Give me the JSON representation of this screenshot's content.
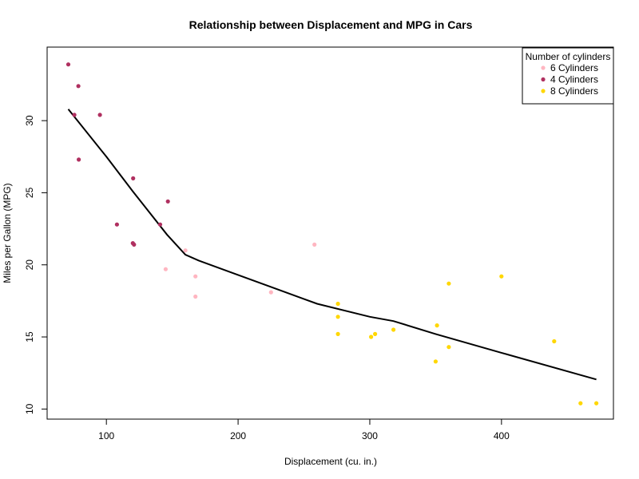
{
  "chart_data": {
    "type": "scatter",
    "title": "Relationship between Displacement and MPG in Cars",
    "xlabel": "Displacement (cu. in.)",
    "ylabel": "Miles per Gallon (MPG)",
    "xlim": [
      55,
      485
    ],
    "ylim": [
      9.3,
      35.1
    ],
    "x_ticks": [
      100,
      200,
      300,
      400
    ],
    "y_ticks": [
      10,
      15,
      20,
      25,
      30
    ],
    "grid": false,
    "legend": {
      "title": "Number of cylinders",
      "position": "top-right",
      "entries": [
        {
          "label": "6 Cylinders",
          "color": "#FFB6C1"
        },
        {
          "label": "4 Cylinders",
          "color": "#B03060"
        },
        {
          "label": "8 Cylinders",
          "color": "#FFD700"
        }
      ]
    },
    "series": [
      {
        "name": "4 Cylinders",
        "color": "#B03060",
        "points": [
          {
            "x": 71.1,
            "y": 33.9
          },
          {
            "x": 75.7,
            "y": 30.4
          },
          {
            "x": 78.7,
            "y": 32.4
          },
          {
            "x": 79.0,
            "y": 27.3
          },
          {
            "x": 95.1,
            "y": 30.4
          },
          {
            "x": 108.0,
            "y": 22.8
          },
          {
            "x": 120.3,
            "y": 26.0
          },
          {
            "x": 120.1,
            "y": 21.5
          },
          {
            "x": 121.0,
            "y": 21.4
          },
          {
            "x": 140.8,
            "y": 22.8
          },
          {
            "x": 146.7,
            "y": 24.4
          }
        ]
      },
      {
        "name": "6 Cylinders",
        "color": "#FFB6C1",
        "points": [
          {
            "x": 145.0,
            "y": 19.7
          },
          {
            "x": 160.0,
            "y": 21.0
          },
          {
            "x": 167.6,
            "y": 19.2
          },
          {
            "x": 167.6,
            "y": 17.8
          },
          {
            "x": 225.0,
            "y": 18.1
          },
          {
            "x": 258.0,
            "y": 21.4
          }
        ]
      },
      {
        "name": "8 Cylinders",
        "color": "#FFD700",
        "points": [
          {
            "x": 275.8,
            "y": 16.4
          },
          {
            "x": 275.8,
            "y": 17.3
          },
          {
            "x": 275.8,
            "y": 15.2
          },
          {
            "x": 301.0,
            "y": 15.0
          },
          {
            "x": 304.0,
            "y": 15.2
          },
          {
            "x": 318.0,
            "y": 15.5
          },
          {
            "x": 350.0,
            "y": 13.3
          },
          {
            "x": 351.0,
            "y": 15.8
          },
          {
            "x": 360.0,
            "y": 18.7
          },
          {
            "x": 360.0,
            "y": 14.3
          },
          {
            "x": 400.0,
            "y": 19.2
          },
          {
            "x": 440.0,
            "y": 14.7
          },
          {
            "x": 460.0,
            "y": 10.4
          },
          {
            "x": 472.0,
            "y": 10.4
          }
        ]
      }
    ],
    "trend_line": {
      "color": "#000000",
      "points": [
        {
          "x": 71.1,
          "y": 30.8
        },
        {
          "x": 100,
          "y": 27.5
        },
        {
          "x": 120,
          "y": 25.1
        },
        {
          "x": 146,
          "y": 22.1
        },
        {
          "x": 160,
          "y": 20.7
        },
        {
          "x": 170,
          "y": 20.3
        },
        {
          "x": 200,
          "y": 19.3
        },
        {
          "x": 230,
          "y": 18.3
        },
        {
          "x": 260,
          "y": 17.3
        },
        {
          "x": 300,
          "y": 16.4
        },
        {
          "x": 318,
          "y": 16.1
        },
        {
          "x": 350,
          "y": 15.2
        },
        {
          "x": 400,
          "y": 13.9
        },
        {
          "x": 472,
          "y": 12.05
        }
      ]
    }
  }
}
